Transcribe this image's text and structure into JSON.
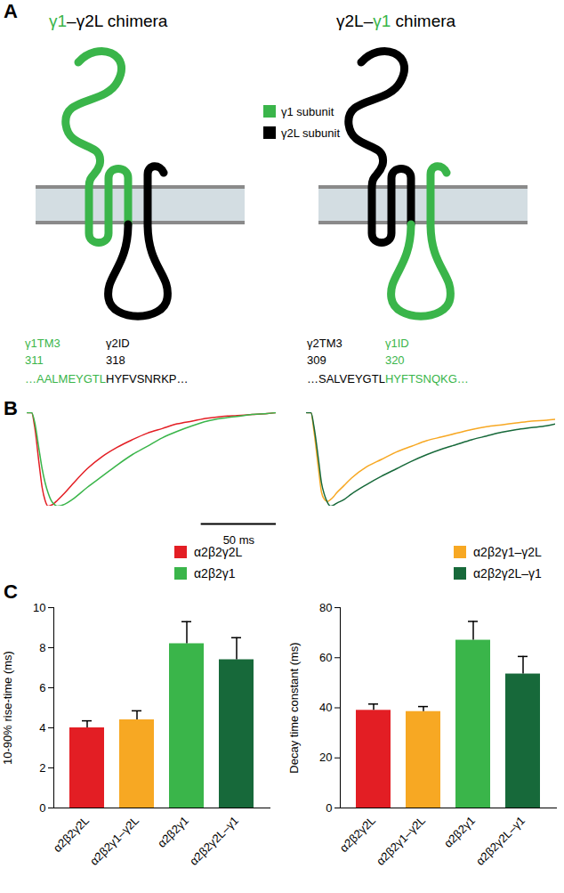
{
  "panel_labels": [
    "A",
    "B",
    "C"
  ],
  "diagram": {
    "legend": [
      {
        "label": "γ1 subunit",
        "color": "#3ab54a"
      },
      {
        "label": "γ2L subunit",
        "color": "#000000"
      }
    ],
    "chimeras": [
      {
        "title": [
          {
            "text": "γ1",
            "color": "#3ab54a"
          },
          {
            "text": "–γ2L chimera",
            "color": "#000000"
          }
        ],
        "segments": [
          {
            "label": "γ1TM3",
            "number": 311,
            "sequence": "…AALMEYGTL",
            "color": "#3ab54a"
          },
          {
            "label": "γ2ID",
            "number": 318,
            "sequence": "HYFVSNRKP…",
            "color": "#000000"
          }
        ]
      },
      {
        "title": [
          {
            "text": "γ2L–",
            "color": "#000000"
          },
          {
            "text": "γ1",
            "color": "#3ab54a"
          },
          {
            "text": " chimera",
            "color": "#000000"
          }
        ],
        "segments": [
          {
            "label": "γ2TM3",
            "number": 309,
            "sequence": "…SALVEYGTL",
            "color": "#000000"
          },
          {
            "label": "γ1ID",
            "number": 320,
            "sequence": "HYFTSNQKG…",
            "color": "#3ab54a"
          }
        ]
      }
    ]
  },
  "chart_data": [
    {
      "type": "line",
      "tick_labels": false,
      "legend": "bottom-right",
      "xlim": [
        0,
        166
      ],
      "ylim": [
        -1,
        0
      ],
      "scale_bar": {
        "value": 50,
        "label": "50 ms"
      },
      "x": [
        0,
        3,
        5,
        8,
        10,
        12,
        14,
        16,
        18,
        20,
        25,
        30,
        40,
        50,
        60,
        70,
        80,
        90,
        100,
        110,
        120,
        130,
        140,
        150,
        160,
        166
      ],
      "series": [
        {
          "name": "α2β2γ2L",
          "color": "#e31e24",
          "values": [
            0,
            0,
            -0.15,
            -0.55,
            -0.8,
            -0.94,
            -1,
            -0.99,
            -0.97,
            -0.94,
            -0.86,
            -0.77,
            -0.6,
            -0.47,
            -0.37,
            -0.29,
            -0.22,
            -0.17,
            -0.12,
            -0.09,
            -0.06,
            -0.04,
            -0.03,
            -0.02,
            -0.01,
            0
          ]
        },
        {
          "name": "α2β2γ1",
          "color": "#3ab54a",
          "values": [
            0,
            0,
            -0.1,
            -0.4,
            -0.6,
            -0.75,
            -0.86,
            -0.94,
            -0.98,
            -1,
            -0.98,
            -0.93,
            -0.8,
            -0.68,
            -0.56,
            -0.45,
            -0.36,
            -0.27,
            -0.2,
            -0.14,
            -0.09,
            -0.06,
            -0.04,
            -0.02,
            -0.01,
            0
          ]
        }
      ]
    },
    {
      "type": "line",
      "tick_labels": false,
      "legend": "bottom-right",
      "xlim": [
        0,
        166
      ],
      "ylim": [
        -1,
        0
      ],
      "x": [
        0,
        3,
        5,
        8,
        10,
        12,
        14,
        16,
        18,
        20,
        25,
        30,
        40,
        50,
        60,
        70,
        80,
        90,
        100,
        110,
        120,
        130,
        140,
        150,
        160,
        166
      ],
      "series": [
        {
          "name": "α2β2γ1–γ2L",
          "color": "#f7a823",
          "values": [
            0,
            0,
            -0.2,
            -0.6,
            -0.85,
            -0.93,
            -0.95,
            -0.93,
            -0.9,
            -0.86,
            -0.78,
            -0.7,
            -0.58,
            -0.5,
            -0.42,
            -0.36,
            -0.3,
            -0.26,
            -0.22,
            -0.18,
            -0.15,
            -0.13,
            -0.11,
            -0.09,
            -0.08,
            -0.07
          ]
        },
        {
          "name": "α2β2γ2L–γ1",
          "color": "#17693a",
          "values": [
            0,
            0,
            -0.15,
            -0.5,
            -0.75,
            -0.88,
            -0.96,
            -1,
            -0.99,
            -0.97,
            -0.93,
            -0.87,
            -0.77,
            -0.68,
            -0.6,
            -0.52,
            -0.45,
            -0.39,
            -0.34,
            -0.29,
            -0.25,
            -0.21,
            -0.18,
            -0.16,
            -0.14,
            -0.12
          ]
        }
      ]
    },
    {
      "type": "bar",
      "ylabel": "10-90% rise-time (ms)",
      "categories": [
        "α2β2γ2L",
        "α2β2γ1–γ2L",
        "α2β2γ1",
        "α2β2γ2L–γ1"
      ],
      "values": [
        4,
        4.4,
        8.2,
        7.4
      ],
      "errors": [
        0.35,
        0.45,
        1.1,
        1.1
      ],
      "colors": [
        "#e31e24",
        "#f7a823",
        "#3ab54a",
        "#17693a"
      ],
      "ylim": [
        0,
        10
      ],
      "yticks": [
        0,
        2,
        4,
        6,
        8,
        10
      ]
    },
    {
      "type": "bar",
      "ylabel": "Decay time constant (ms)",
      "categories": [
        "α2β2γ2L",
        "α2β2γ1–γ2L",
        "α2β2γ1",
        "α2β2γ2L–γ1"
      ],
      "values": [
        39,
        38.5,
        67,
        53.5
      ],
      "errors": [
        2.5,
        2,
        7.5,
        7
      ],
      "colors": [
        "#e31e24",
        "#f7a823",
        "#3ab54a",
        "#17693a"
      ],
      "ylim": [
        0,
        80
      ],
      "yticks": [
        0,
        20,
        40,
        60,
        80
      ]
    }
  ]
}
